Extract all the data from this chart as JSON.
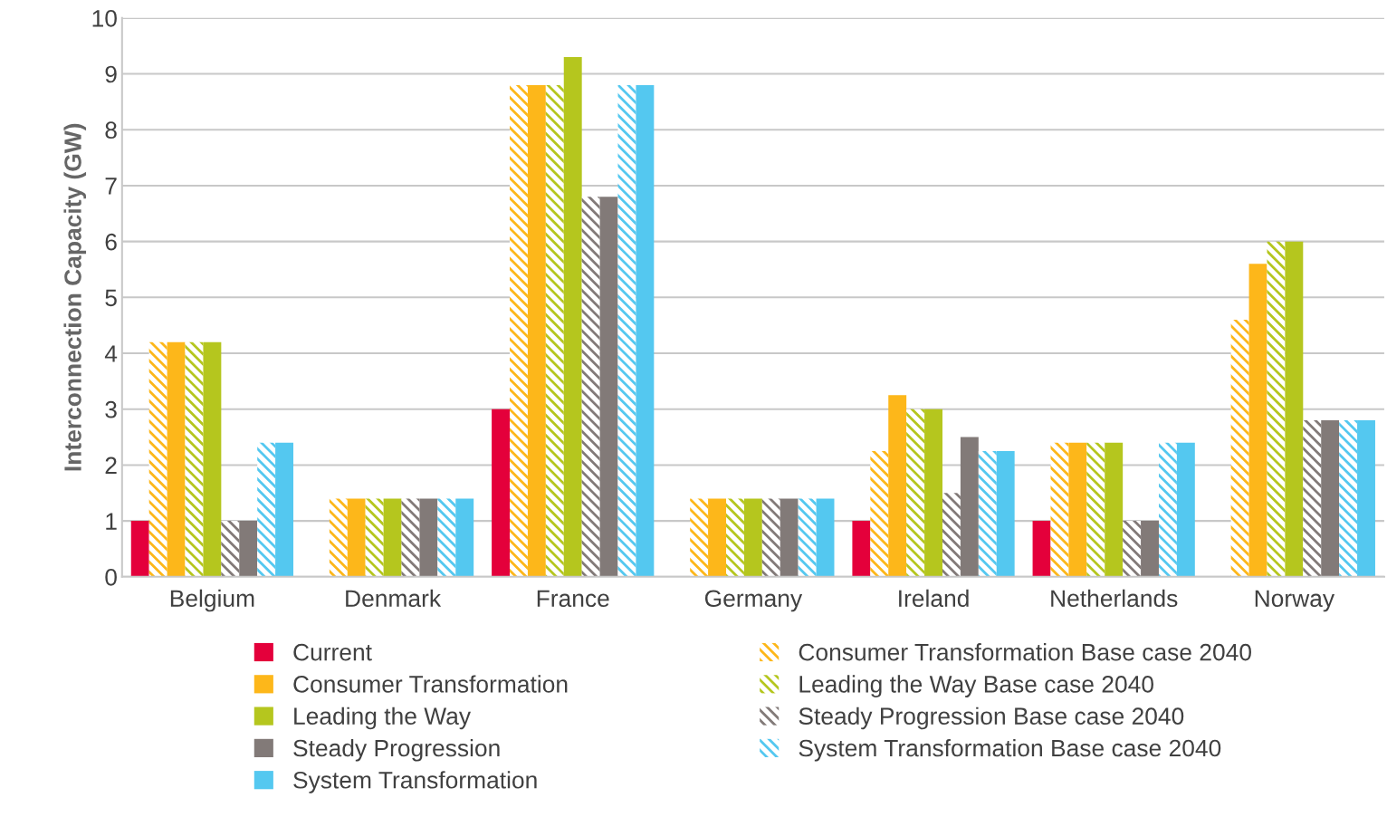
{
  "chart_data": {
    "type": "bar",
    "ylabel": "Interconnection Capacity (GW)",
    "categories": [
      "Belgium",
      "Denmark",
      "France",
      "Germany",
      "Ireland",
      "Netherlands",
      "Norway"
    ],
    "ylim": [
      0,
      10
    ],
    "yticks": [
      0,
      1,
      2,
      3,
      4,
      5,
      6,
      7,
      8,
      9,
      10
    ],
    "grid": "y",
    "legend": "bottom",
    "series": [
      {
        "name": "Current",
        "color": "#e4003b",
        "values": [
          1,
          0,
          3,
          0,
          1,
          1,
          0
        ]
      },
      {
        "name": "Consumer Transformation Base case 2040",
        "color": "#fdb71a",
        "values": [
          4.2,
          1.4,
          8.8,
          1.4,
          2.25,
          2.4,
          4.6
        ]
      },
      {
        "name": "Consumer Transformation",
        "color": "#fdb71a",
        "values": [
          4.2,
          1.4,
          8.8,
          1.4,
          3.25,
          2.4,
          5.6
        ]
      },
      {
        "name": "Leading the Way Base case 2040",
        "color": "#b5c61e",
        "values": [
          4.2,
          1.4,
          8.8,
          1.4,
          3.0,
          2.4,
          6.0
        ]
      },
      {
        "name": "Leading the Way",
        "color": "#b5c61e",
        "values": [
          4.2,
          1.4,
          9.3,
          1.4,
          3.0,
          2.4,
          6.0
        ]
      },
      {
        "name": "Steady Progression Base case 2040",
        "color": "#827a78",
        "values": [
          1,
          1.4,
          6.8,
          1.4,
          1.5,
          1,
          2.8
        ]
      },
      {
        "name": "Steady Progression",
        "color": "#827a78",
        "values": [
          1,
          1.4,
          6.8,
          1.4,
          2.5,
          1,
          2.8
        ]
      },
      {
        "name": "System Transformation Base case 2040",
        "color": "#54c8f0",
        "values": [
          2.4,
          1.4,
          8.8,
          1.4,
          2.25,
          2.4,
          2.8
        ]
      },
      {
        "name": "System Transformation",
        "color": "#54c8f0",
        "values": [
          2.4,
          1.4,
          8.8,
          1.4,
          2.25,
          2.4,
          2.8
        ]
      }
    ]
  }
}
